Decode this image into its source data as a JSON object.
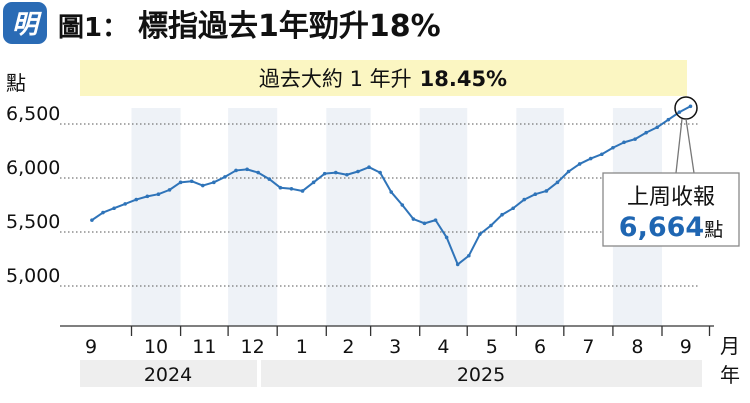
{
  "header": {
    "badge": "明",
    "fig_label": "圖1：",
    "title": "標指過去1年勁升18%"
  },
  "banner": {
    "prefix": "過去大約 1 年升",
    "value": "18.45%"
  },
  "unit_label": "點",
  "callout": {
    "title": "上周收報",
    "value": "6,664",
    "unit": "點"
  },
  "month_unit_label": "月",
  "year_unit_label": "年",
  "colors": {
    "badge": "#2a6bb5",
    "bars": "#2f74b9",
    "banner_bg": "#fbf6c2",
    "month_band": "#eef2f7",
    "year_band": "#eeeeee",
    "callout_value": "#1f66b2",
    "grid": "#555555",
    "axis": "#333333"
  },
  "chart_data": {
    "type": "line",
    "title": "標指過去1年勁升18%",
    "ylabel": "點",
    "ylim": [
      4700,
      6760
    ],
    "yticks": [
      5000,
      5500,
      6000,
      6500
    ],
    "ytick_labels": [
      "5,000",
      "5,500",
      "6,000",
      "6,500"
    ],
    "grid": true,
    "months": [
      "9",
      "10",
      "11",
      "12",
      "1",
      "2",
      "3",
      "4",
      "5",
      "6",
      "7",
      "8",
      "9"
    ],
    "years": [
      "2024",
      "2025"
    ],
    "x": [
      "2024-09-06",
      "2024-09-13",
      "2024-09-20",
      "2024-09-27",
      "2024-10-04",
      "2024-10-11",
      "2024-10-18",
      "2024-10-25",
      "2024-11-01",
      "2024-11-08",
      "2024-11-15",
      "2024-11-22",
      "2024-11-29",
      "2024-12-06",
      "2024-12-13",
      "2024-12-20",
      "2024-12-27",
      "2025-01-03",
      "2025-01-10",
      "2025-01-17",
      "2025-01-24",
      "2025-01-31",
      "2025-02-07",
      "2025-02-14",
      "2025-02-21",
      "2025-02-28",
      "2025-03-07",
      "2025-03-14",
      "2025-03-21",
      "2025-03-28",
      "2025-04-04",
      "2025-04-11",
      "2025-04-18",
      "2025-04-25",
      "2025-05-02",
      "2025-05-09",
      "2025-05-16",
      "2025-05-23",
      "2025-05-30",
      "2025-06-06",
      "2025-06-13",
      "2025-06-20",
      "2025-06-27",
      "2025-07-04",
      "2025-07-11",
      "2025-07-18",
      "2025-07-25",
      "2025-08-01",
      "2025-08-08",
      "2025-08-15",
      "2025-08-22",
      "2025-08-29",
      "2025-09-05",
      "2025-09-12",
      "2025-09-19"
    ],
    "series": [
      {
        "values": [
          5610,
          5680,
          5720,
          5760,
          5800,
          5830,
          5850,
          5890,
          5960,
          5970,
          5930,
          5960,
          6010,
          6070,
          6080,
          6050,
          5990,
          5910,
          5900,
          5880,
          5960,
          6040,
          6050,
          6030,
          6060,
          6100,
          6050,
          5870,
          5750,
          5620,
          5580,
          5610,
          5450,
          5200,
          5280,
          5480,
          5560,
          5660,
          5720,
          5800,
          5850,
          5880,
          5960,
          6060,
          6130,
          6180,
          6220,
          6280,
          6330,
          6360,
          6420,
          6470,
          6540,
          6610,
          6664
        ]
      }
    ],
    "annotations": [
      {
        "text": "過去大約 1 年升 18.45%"
      },
      {
        "text": "上周收報 6,664點"
      }
    ]
  }
}
